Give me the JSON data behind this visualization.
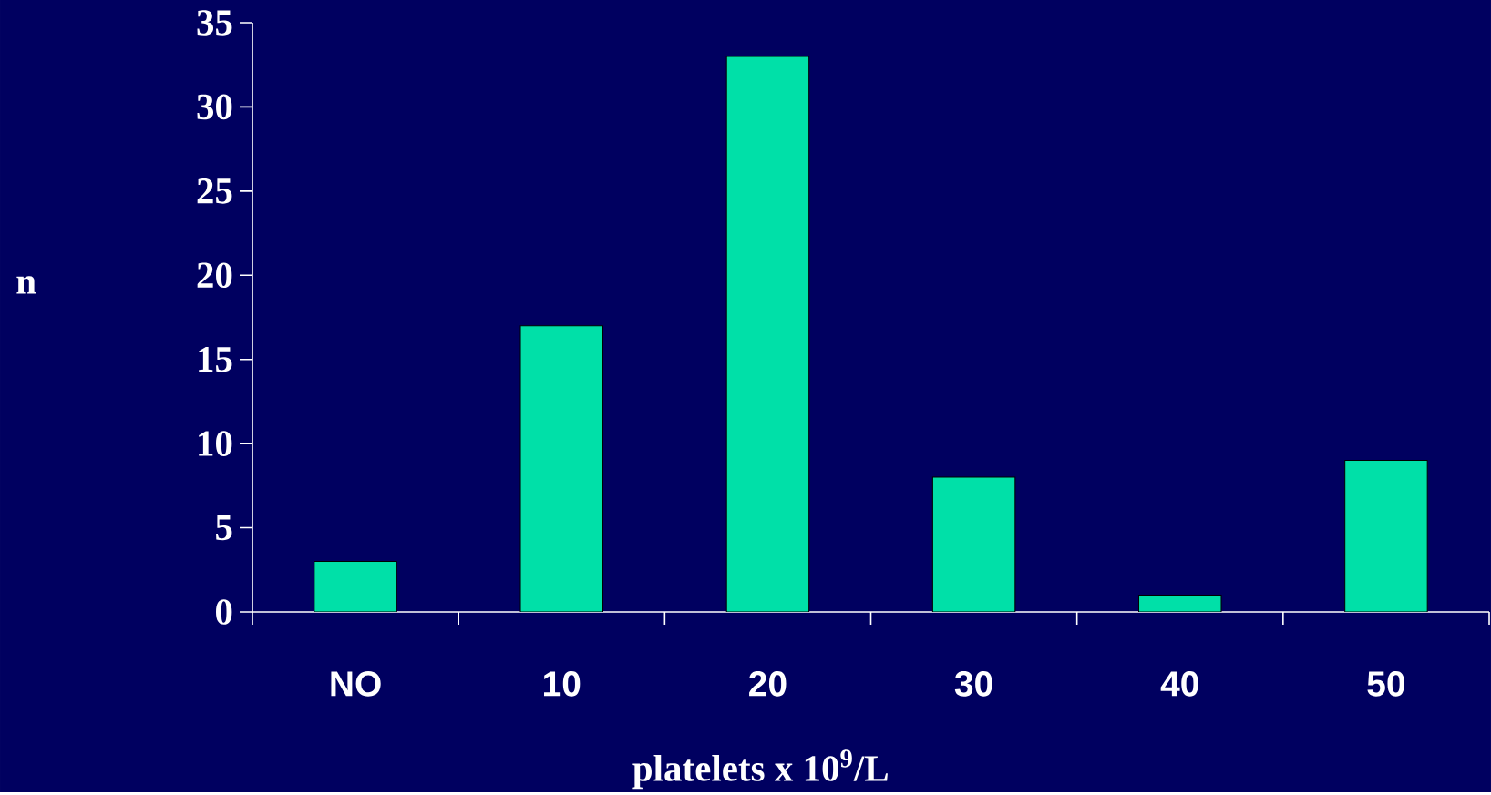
{
  "chart_data": {
    "type": "bar",
    "categories": [
      "NO",
      "10",
      "20",
      "30",
      "40",
      "50"
    ],
    "values": [
      3,
      17,
      33,
      8,
      1,
      9
    ],
    "color": "#00e0a8",
    "xlabel": "platelets x 10$^{9}$/L",
    "ylabel": "n",
    "ylim": [
      0,
      35
    ],
    "yticks": [
      0,
      5,
      10,
      15,
      20,
      25,
      30,
      35
    ]
  }
}
